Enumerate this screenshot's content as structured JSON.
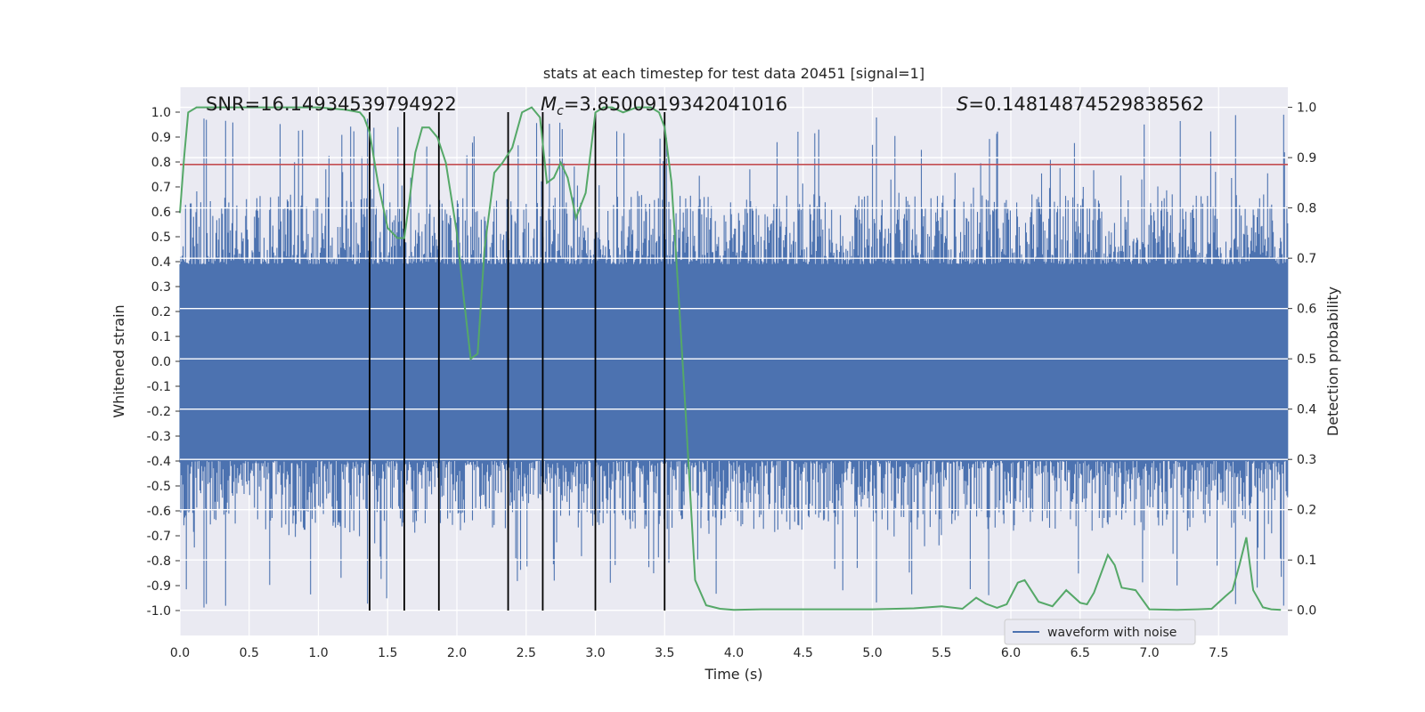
{
  "chart_data": {
    "type": "line",
    "title": "stats at each timestep for test data 20451 [signal=1]",
    "xlabel": "Time (s)",
    "ylabel_left": "Whitened strain",
    "ylabel_right": "Detection probability",
    "xlim": [
      0,
      8
    ],
    "ylim_left": [
      -1.1,
      1.1
    ],
    "ylim_right": [
      -0.05,
      1.04
    ],
    "x_ticks": [
      "0.0",
      "0.5",
      "1.0",
      "1.5",
      "2.0",
      "2.5",
      "3.0",
      "3.5",
      "4.0",
      "4.5",
      "5.0",
      "5.5",
      "6.0",
      "6.5",
      "7.0",
      "7.5"
    ],
    "y_ticks_left": [
      "1.0",
      "0.9",
      "0.8",
      "0.7",
      "0.6",
      "0.5",
      "0.4",
      "0.3",
      "0.2",
      "0.1",
      "0.0",
      "-0.1",
      "-0.2",
      "-0.3",
      "-0.4",
      "-0.5",
      "-0.6",
      "-0.7",
      "-0.8",
      "-0.9",
      "-1.0"
    ],
    "y_ticks_right": [
      "1.0",
      "0.9",
      "0.8",
      "0.7",
      "0.6",
      "0.5",
      "0.4",
      "0.3",
      "0.2",
      "0.1",
      "0.0"
    ],
    "annotations": {
      "snr": "SNR=16.14934539794922",
      "mc": "=3.8500919342041016",
      "mc_symbol": "M",
      "mc_sub": "c",
      "s": "=0.14814874529838562",
      "s_symbol": "S"
    },
    "threshold": {
      "value": 0.79,
      "color": "#c44e52"
    },
    "vertical_markers": [
      1.37,
      1.62,
      1.87,
      2.37,
      2.62,
      3.0,
      3.5
    ],
    "waveform": {
      "name": "waveform with noise",
      "color": "#4c72b0",
      "core_band": [
        -0.4,
        0.39
      ],
      "spike_range": [
        -0.99,
        0.99
      ]
    },
    "detection_probability": {
      "color": "#55a868",
      "x": [
        0.0,
        0.03,
        0.06,
        0.12,
        0.2,
        0.4,
        0.7,
        1.0,
        1.2,
        1.3,
        1.33,
        1.37,
        1.43,
        1.5,
        1.57,
        1.62,
        1.66,
        1.7,
        1.75,
        1.8,
        1.86,
        1.92,
        2.0,
        2.05,
        2.1,
        2.15,
        2.2,
        2.27,
        2.33,
        2.4,
        2.47,
        2.54,
        2.6,
        2.65,
        2.7,
        2.75,
        2.8,
        2.86,
        2.93,
        2.97,
        3.0,
        3.06,
        3.12,
        3.2,
        3.3,
        3.4,
        3.46,
        3.5,
        3.55,
        3.6,
        3.65,
        3.72,
        3.8,
        3.9,
        4.0,
        4.2,
        4.5,
        4.8,
        5.0,
        5.3,
        5.5,
        5.65,
        5.75,
        5.82,
        5.9,
        5.97,
        6.05,
        6.1,
        6.2,
        6.3,
        6.4,
        6.5,
        6.55,
        6.6,
        6.7,
        6.75,
        6.8,
        6.9,
        7.0,
        7.2,
        7.35,
        7.45,
        7.55,
        7.6,
        7.65,
        7.7,
        7.75,
        7.82,
        7.88,
        7.95
      ],
      "values": [
        0.79,
        0.9,
        0.99,
        1.0,
        1.0,
        1.0,
        1.0,
        1.0,
        0.995,
        0.99,
        0.98,
        0.95,
        0.85,
        0.76,
        0.74,
        0.74,
        0.82,
        0.91,
        0.96,
        0.96,
        0.94,
        0.89,
        0.75,
        0.62,
        0.5,
        0.51,
        0.72,
        0.87,
        0.89,
        0.92,
        0.99,
        1.0,
        0.98,
        0.85,
        0.86,
        0.89,
        0.86,
        0.78,
        0.83,
        0.92,
        0.99,
        1.0,
        1.0,
        0.99,
        1.0,
        1.0,
        0.99,
        0.96,
        0.85,
        0.63,
        0.4,
        0.06,
        0.01,
        0.003,
        0.001,
        0.002,
        0.002,
        0.002,
        0.002,
        0.004,
        0.008,
        0.003,
        0.025,
        0.013,
        0.005,
        0.012,
        0.055,
        0.06,
        0.017,
        0.008,
        0.04,
        0.015,
        0.012,
        0.035,
        0.11,
        0.09,
        0.045,
        0.04,
        0.002,
        0.001,
        0.002,
        0.003,
        0.028,
        0.04,
        0.09,
        0.145,
        0.04,
        0.006,
        0.002,
        0.001
      ]
    },
    "legend": {
      "position": "lower-right",
      "label": "waveform with noise"
    }
  }
}
